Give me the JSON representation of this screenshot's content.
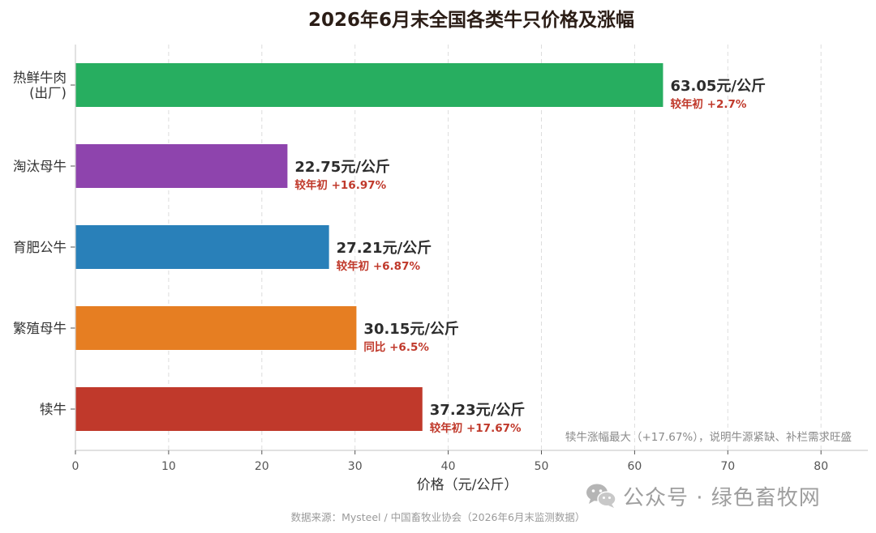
{
  "chart_data": {
    "type": "bar",
    "orientation": "horizontal",
    "title": "2026年6月末全国各类牛只价格及涨幅",
    "xlabel": "价格（元/公斤）",
    "ylabel": "",
    "xlim": [
      0,
      85
    ],
    "xticks": [
      0,
      10,
      20,
      30,
      40,
      50,
      60,
      70,
      80
    ],
    "grid": "vertical-dashed",
    "categories": [
      "热鲜牛肉\n(出厂)",
      "淘汰母牛",
      "育肥公牛",
      "繁殖母牛",
      "犊牛"
    ],
    "values": [
      63.05,
      22.75,
      27.21,
      30.15,
      37.23
    ],
    "value_labels": [
      "63.05元/公斤",
      "22.75元/公斤",
      "27.21元/公斤",
      "30.15元/公斤",
      "37.23元/公斤"
    ],
    "change_labels": [
      "较年初 +2.7%",
      "较年初 +16.97%",
      "较年初 +6.87%",
      "同比 +6.5%",
      "较年初 +17.67%"
    ],
    "colors": [
      "#27ae60",
      "#8e44ad",
      "#2980b9",
      "#e67e22",
      "#c0392b"
    ],
    "annotation": "犊牛涨幅最大（+17.67%），说明牛源紧缺、补栏需求旺盛",
    "source": "数据来源：Mysteel / 中国畜牧业协会（2026年6月末监测数据）"
  },
  "watermark": {
    "icon": "wechat-icon",
    "text": "公众号 · 绿色畜牧网"
  },
  "style": {
    "title_color": "#2b1d16",
    "change_color": "#c0392b",
    "value_color": "#2c2c2c",
    "axis_color": "#555555",
    "grid_color": "#dddddd"
  }
}
